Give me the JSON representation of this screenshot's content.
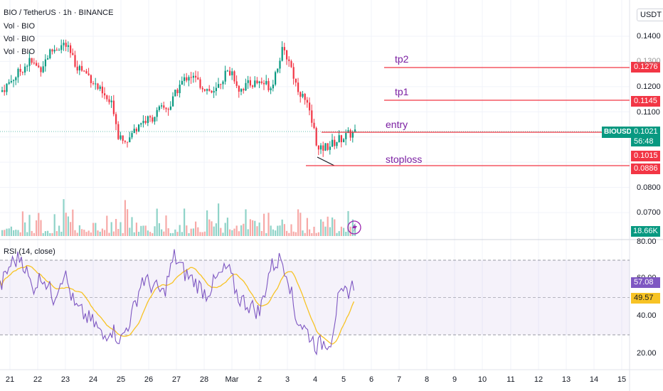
{
  "header": {
    "symbol_line": "BIO / TetherUS · 1h · BINANCE",
    "vol_lines": [
      "Vol · BIO",
      "Vol · BIO",
      "Vol · BIO"
    ],
    "currency": "USDT"
  },
  "price_axis": {
    "ticks": [
      "0.1400",
      "0.1300",
      "0.1200",
      "0.1100",
      "0.0800",
      "0.0700"
    ],
    "ticks_visible": [
      {
        "label": "0.1400",
        "value": 0.14
      },
      {
        "label": "0.1200",
        "value": 0.12
      },
      {
        "label": "0.1100",
        "value": 0.11
      },
      {
        "label": "0.0800",
        "value": 0.08
      },
      {
        "label": "0.0700",
        "value": 0.07
      }
    ]
  },
  "levels": [
    {
      "name": "tp2",
      "price_tag": "0.1276",
      "color": "#f23645"
    },
    {
      "name": "tp1",
      "price_tag": "0.1145",
      "color": "#f23645"
    },
    {
      "name": "entry",
      "price_tag": "0.1015",
      "color": "#f23645"
    },
    {
      "name": "stoploss",
      "price_tag": "0.0886",
      "color": "#f23645"
    }
  ],
  "current_price": {
    "symbol": "BIOUSDT",
    "price": "0.1021",
    "countdown": "56:48",
    "color": "#089981"
  },
  "volume_tag": {
    "value": "18.66K",
    "color": "#089981"
  },
  "rsi": {
    "title": "RSI (14, close)",
    "value": "57.08",
    "ma_value": "49.57",
    "axis": [
      "80.00",
      "60.00",
      "40.00",
      "20.00"
    ],
    "line_color": "#7e57c2",
    "ma_color": "#f7c325"
  },
  "x_axis": {
    "labels": [
      "21",
      "22",
      "23",
      "24",
      "25",
      "26",
      "27",
      "28",
      "Mar",
      "2",
      "3",
      "4",
      "5",
      "6",
      "7",
      "8",
      "9",
      "10",
      "11",
      "12",
      "13",
      "14",
      "15"
    ]
  },
  "colors": {
    "up": "#089981",
    "down": "#f23645",
    "grid": "#f0f3fa"
  }
}
